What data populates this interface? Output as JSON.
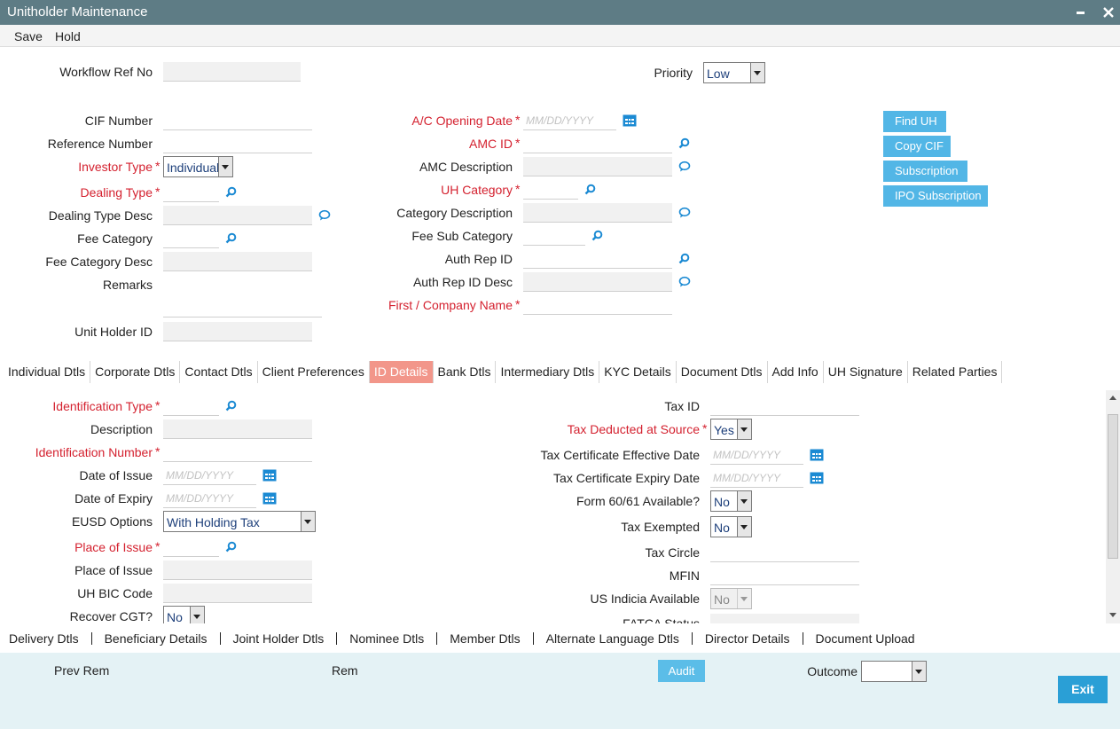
{
  "window": {
    "title": "Unitholder Maintenance"
  },
  "menu": [
    "Save",
    "Hold"
  ],
  "header": {
    "fields": [
      {
        "label": "Workflow Ref No",
        "input": "readonly"
      },
      {
        "label": "Priority",
        "input": "select",
        "value": "Low"
      }
    ]
  },
  "main": {
    "left": [
      {
        "label": "CIF Number",
        "input": "text"
      },
      {
        "label": "Reference Number",
        "input": "text"
      },
      {
        "label": "Investor Type",
        "required": "*",
        "input": "select",
        "value": "Individual"
      },
      {
        "label": "Dealing Type",
        "required": "*",
        "input": "lookup"
      },
      {
        "label": "Dealing Type Desc",
        "input": "info"
      },
      {
        "label": "Fee Category",
        "input": "lookup"
      },
      {
        "label": "Fee Category Desc",
        "input": "readonly"
      },
      {
        "label": "Remarks",
        "input": "textarea"
      },
      {
        "label": "Unit Holder ID",
        "input": "readonly"
      }
    ],
    "middle": [
      {
        "label": "A/C Opening Date",
        "required": "*",
        "input": "date",
        "placeholder": "MM/DD/YYYY"
      },
      {
        "label": "AMC ID",
        "required": "*",
        "input": "lookup"
      },
      {
        "label": "AMC Description",
        "input": "info"
      },
      {
        "label": "UH Category",
        "required": "*",
        "input": "lookup"
      },
      {
        "label": "Category Description",
        "input": "info"
      },
      {
        "label": "Fee Sub Category",
        "input": "lookup"
      },
      {
        "label": "Auth Rep ID",
        "input": "lookup"
      },
      {
        "label": "Auth Rep ID Desc",
        "input": "info"
      },
      {
        "label": "First / Company Name",
        "required": "*",
        "input": "text"
      }
    ],
    "buttons": [
      "Find UH",
      "Copy CIF",
      "Subscription",
      "IPO Subscription"
    ]
  },
  "tabs": {
    "items": [
      "Individual Dtls",
      "Corporate Dtls",
      "Contact Dtls",
      "Client Preferences",
      "ID Details",
      "Bank Dtls",
      "Intermediary Dtls",
      "KYC Details",
      "Document Dtls",
      "Add Info",
      "UH Signature",
      "Related Parties"
    ],
    "selected": 4
  },
  "id_details": {
    "left": [
      {
        "label": "Identification Type",
        "required": "*",
        "input": "lookup"
      },
      {
        "label": "Description",
        "input": "readonly"
      },
      {
        "label": "Identification Number",
        "required": "*",
        "input": "text"
      },
      {
        "label": "Date of Issue",
        "input": "date",
        "placeholder": "MM/DD/YYYY"
      },
      {
        "label": "Date of Expiry",
        "input": "date",
        "placeholder": "MM/DD/YYYY"
      },
      {
        "label": "EUSD Options",
        "input": "select",
        "value": "With Holding Tax"
      },
      {
        "label": "Place of Issue",
        "required": "*",
        "input": "lookup"
      },
      {
        "label": "Place of Issue",
        "input": "readonly"
      },
      {
        "label": "UH BIC Code",
        "input": "readonly"
      },
      {
        "label": "Recover CGT?",
        "input": "select",
        "value": "No"
      }
    ],
    "right": [
      {
        "label": "Tax ID",
        "input": "text"
      },
      {
        "label": "Tax Deducted at Source",
        "required": "*",
        "input": "select",
        "value": "Yes"
      },
      {
        "label": "Tax Certificate Effective Date",
        "input": "date",
        "placeholder": "MM/DD/YYYY"
      },
      {
        "label": "Tax Certificate Expiry Date",
        "input": "date",
        "placeholder": "MM/DD/YYYY"
      },
      {
        "label": "Form 60/61 Available?",
        "input": "select",
        "value": "No"
      },
      {
        "label": "Tax Exempted",
        "input": "select",
        "value": "No"
      },
      {
        "label": "Tax Circle",
        "input": "text"
      },
      {
        "label": "MFIN",
        "input": "text"
      },
      {
        "label": "US Indicia Available",
        "input": "select",
        "value": "No",
        "disabled": true
      },
      {
        "label": "FATCA Status",
        "input": "readonly"
      }
    ]
  },
  "sub_links": [
    "Delivery Dtls",
    "Beneficiary Details",
    "Joint Holder Dtls",
    "Nominee Dtls",
    "Member Dtls",
    "Alternate Language Dtls",
    "Director Details",
    "Document Upload"
  ],
  "footer": {
    "prev_rem": "Prev Rem",
    "rem": "Rem",
    "audit": "Audit",
    "outcome": {
      "label": "Outcome",
      "input": "select"
    },
    "exit": "Exit"
  }
}
